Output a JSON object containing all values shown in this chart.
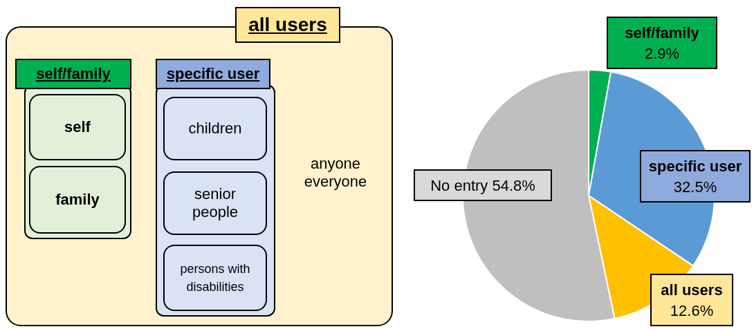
{
  "chart_data": [
    {
      "type": "other",
      "title": "all users",
      "annotations": [
        "self/family",
        "self",
        "family",
        "specific user",
        "children",
        "senior people",
        "persons with disabilities",
        "anyone everyone"
      ]
    },
    {
      "type": "pie",
      "categories": [
        "self/family",
        "specific user",
        "all users",
        "No entry"
      ],
      "values": [
        2.9,
        32.5,
        12.6,
        54.8
      ],
      "value_labels": [
        "2.9%",
        "32.5%",
        "12.6%",
        "54.8%"
      ],
      "colors": [
        "#00b050",
        "#5b9bd5",
        "#ffc000",
        "#bfbfbf"
      ]
    }
  ]
}
